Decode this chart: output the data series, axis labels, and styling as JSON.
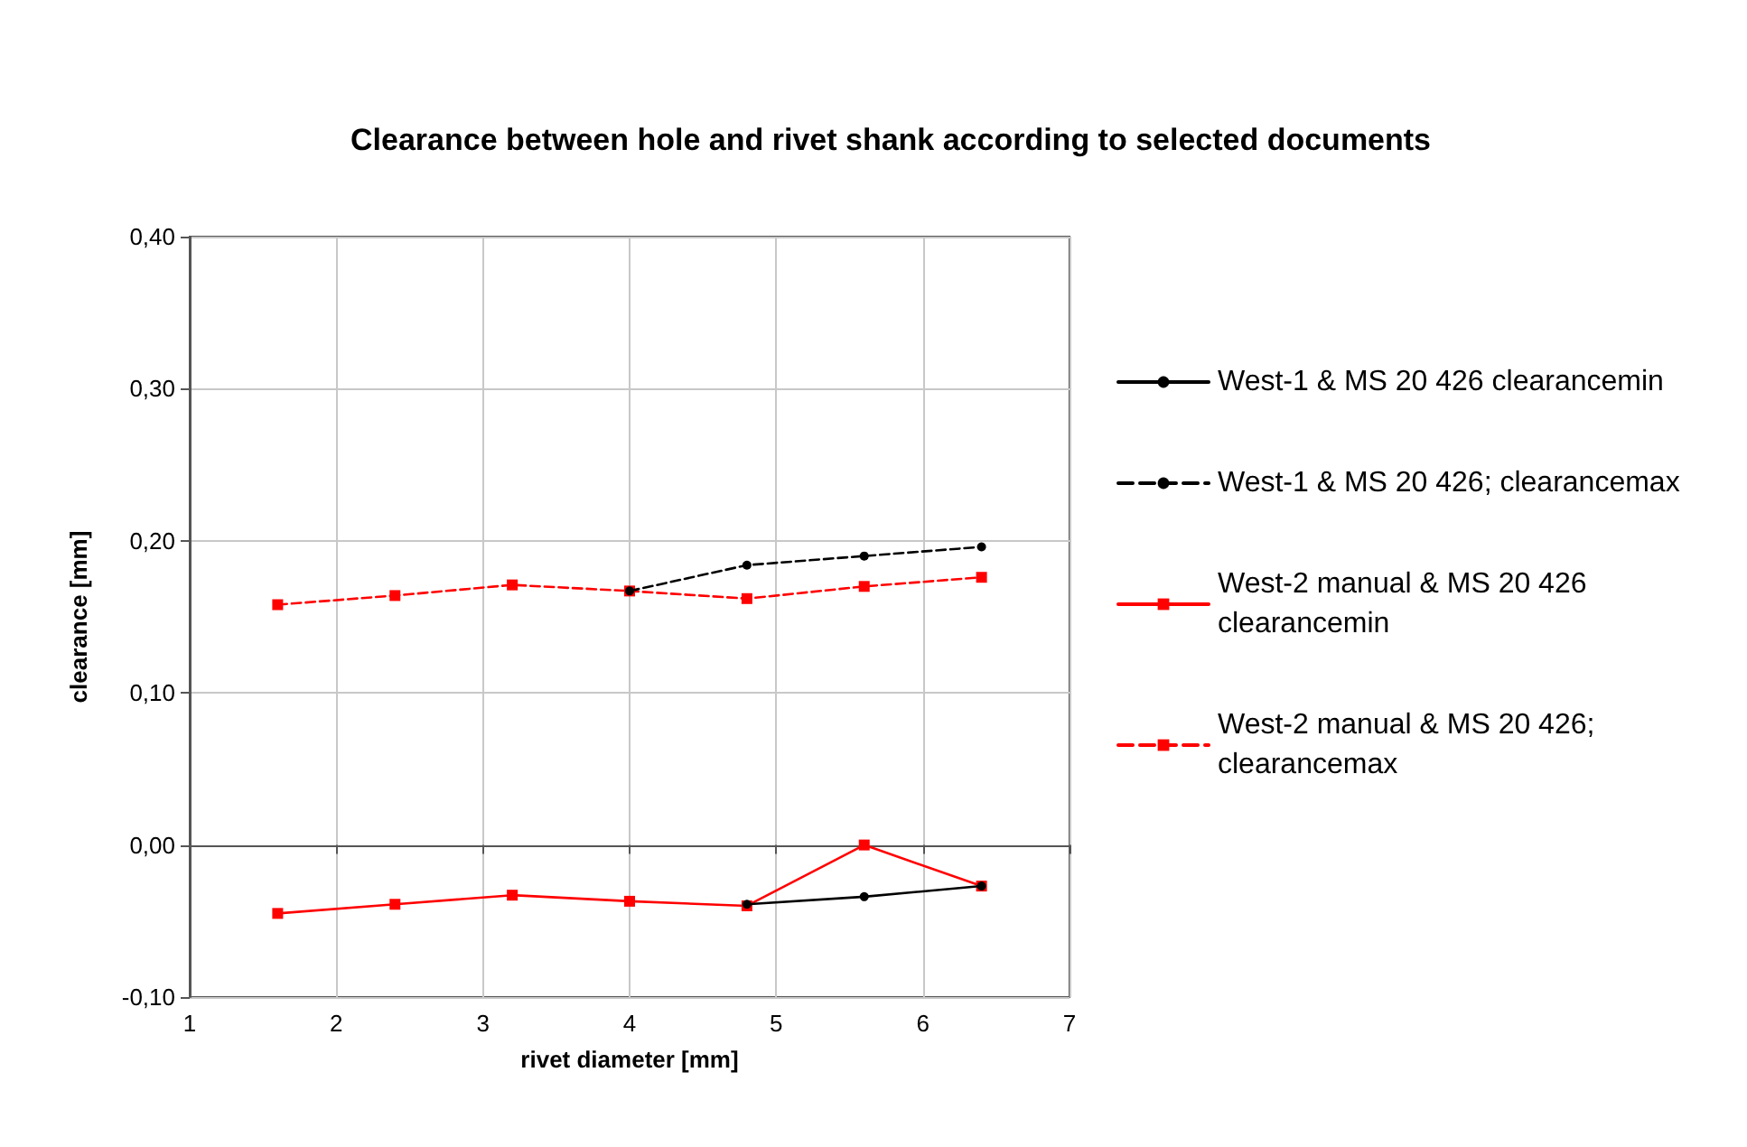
{
  "chart_data": {
    "type": "line",
    "title": "Clearance between hole and rivet shank according to selected documents",
    "xlabel": "rivet diameter [mm]",
    "ylabel": "clearance [mm]",
    "x": [
      1.6,
      2.4,
      3.2,
      4.0,
      4.8,
      5.6,
      6.4
    ],
    "series": [
      {
        "name": "West-1 & MS 20 426 clearancemin",
        "color": "#000000",
        "marker": "circle",
        "line_style": "solid",
        "values": [
          null,
          null,
          null,
          null,
          -0.039,
          -0.034,
          -0.027
        ]
      },
      {
        "name": "West-1 & MS 20 426; clearancemax",
        "color": "#000000",
        "marker": "circle",
        "line_style": "dashed",
        "values": [
          null,
          null,
          null,
          0.167,
          0.184,
          0.19,
          0.196
        ]
      },
      {
        "name": "West-2 manual & MS 20 426 clearancemin",
        "color": "#ff0000",
        "marker": "square",
        "line_style": "solid",
        "values": [
          -0.045,
          -0.039,
          -0.033,
          -0.037,
          -0.04,
          0.0,
          -0.027
        ]
      },
      {
        "name": "West-2 manual & MS 20 426; clearancemax",
        "color": "#ff0000",
        "marker": "square",
        "line_style": "dashed",
        "values": [
          0.158,
          0.164,
          0.171,
          0.167,
          0.162,
          0.17,
          0.176
        ]
      }
    ],
    "xlim": [
      1,
      7
    ],
    "xticks": [
      1,
      2,
      3,
      4,
      5,
      6,
      7
    ],
    "ylim": [
      -0.1,
      0.4
    ],
    "yticks": [
      {
        "value": -0.1,
        "label": "-0,10"
      },
      {
        "value": 0,
        "label": "0,00"
      },
      {
        "value": 0.1,
        "label": "0,10"
      },
      {
        "value": 0.2,
        "label": "0,20"
      },
      {
        "value": 0.3,
        "label": "0,30"
      },
      {
        "value": 0.4,
        "label": "0,40"
      }
    ],
    "grid": true,
    "legend": "right"
  }
}
